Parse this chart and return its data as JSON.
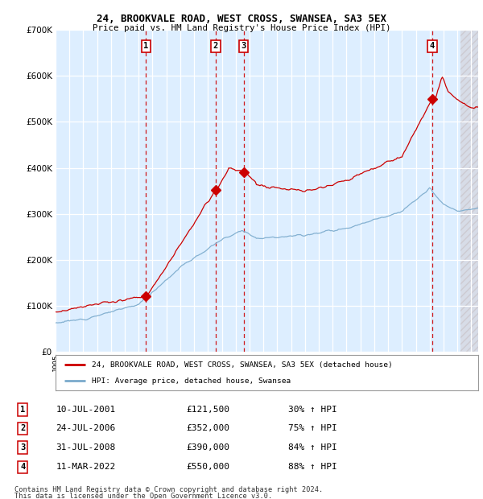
{
  "title": "24, BROOKVALE ROAD, WEST CROSS, SWANSEA, SA3 5EX",
  "subtitle": "Price paid vs. HM Land Registry's House Price Index (HPI)",
  "legend_label_red": "24, BROOKVALE ROAD, WEST CROSS, SWANSEA, SA3 5EX (detached house)",
  "legend_label_blue": "HPI: Average price, detached house, Swansea",
  "footer1": "Contains HM Land Registry data © Crown copyright and database right 2024.",
  "footer2": "This data is licensed under the Open Government Licence v3.0.",
  "transactions": [
    {
      "num": 1,
      "date": "10-JUL-2001",
      "price": 121500,
      "pct": "30%",
      "year": 2001.53
    },
    {
      "num": 2,
      "date": "24-JUL-2006",
      "price": 352000,
      "pct": "75%",
      "year": 2006.56
    },
    {
      "num": 3,
      "date": "31-JUL-2008",
      "price": 390000,
      "pct": "84%",
      "year": 2008.58
    },
    {
      "num": 4,
      "date": "11-MAR-2022",
      "price": 550000,
      "pct": "88%",
      "year": 2022.19
    }
  ],
  "color_red": "#cc0000",
  "color_blue": "#7aaacc",
  "bg_plot": "#ddeeff",
  "bg_fig": "#ffffff",
  "ylim": [
    0,
    700000
  ],
  "xlim_start": 1995.0,
  "xlim_end": 2025.5
}
